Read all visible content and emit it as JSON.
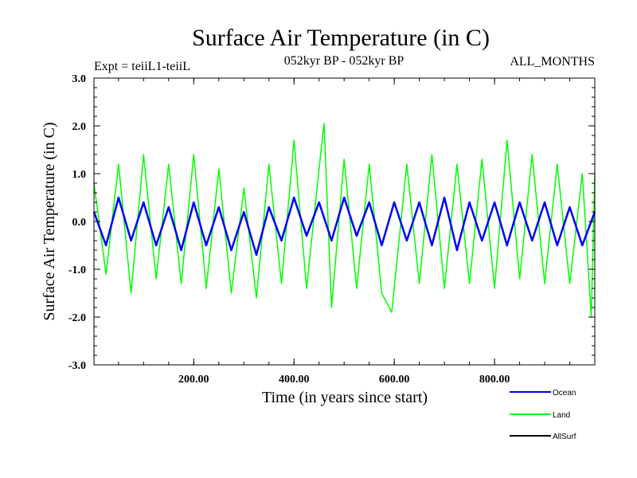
{
  "chart_data": {
    "type": "line",
    "title": "Surface Air Temperature (in C)",
    "subtitle_left": "Expt = teiiL1-teiiL",
    "subtitle_center": "052kyr BP - 052kyr BP",
    "subtitle_right": "ALL_MONTHS",
    "xlabel": "Time (in years since start)",
    "ylabel": "Surface Air Temperature (in C)",
    "xlim": [
      1,
      1000
    ],
    "ylim": [
      -3.0,
      3.0
    ],
    "xticks": [
      200,
      400,
      600,
      800
    ],
    "xtick_labels": [
      "200.00",
      "400.00",
      "600.00",
      "800.00"
    ],
    "yticks": [
      -3,
      -2,
      -1,
      0,
      1,
      2,
      3
    ],
    "ytick_labels": [
      "-3.0",
      "-2.0",
      "-1.0",
      "0.0",
      "1.0",
      "2.0",
      "3.0"
    ],
    "grid": false,
    "legend_position": "bottom-right",
    "series": [
      {
        "name": "Land",
        "color": "#00ff00",
        "x": [
          1,
          25,
          50,
          75,
          100,
          125,
          150,
          175,
          200,
          225,
          250,
          275,
          300,
          325,
          350,
          375,
          400,
          425,
          450,
          460,
          475,
          500,
          525,
          550,
          575,
          595,
          625,
          650,
          675,
          700,
          725,
          750,
          775,
          800,
          825,
          850,
          875,
          900,
          925,
          950,
          975,
          993,
          1000
        ],
        "values": [
          0.8,
          -1.1,
          1.2,
          -1.5,
          1.4,
          -1.2,
          1.2,
          -1.3,
          1.4,
          -1.4,
          1.1,
          -1.5,
          0.7,
          -1.6,
          1.2,
          -1.3,
          1.7,
          -1.4,
          1.1,
          2.05,
          -1.8,
          1.3,
          -1.4,
          1.2,
          -1.5,
          -1.9,
          1.2,
          -1.3,
          1.4,
          -1.4,
          1.2,
          -1.3,
          1.3,
          -1.4,
          1.7,
          -1.2,
          1.4,
          -1.3,
          1.2,
          -1.3,
          1.0,
          -2.0,
          1.0
        ]
      },
      {
        "name": "Ocean",
        "color": "#0000ff",
        "x": [
          1,
          25,
          50,
          75,
          100,
          125,
          150,
          175,
          200,
          225,
          250,
          275,
          300,
          325,
          350,
          375,
          400,
          425,
          450,
          475,
          500,
          525,
          550,
          575,
          600,
          625,
          650,
          675,
          700,
          725,
          750,
          775,
          800,
          825,
          850,
          875,
          900,
          925,
          950,
          975,
          1000
        ],
        "values": [
          0.2,
          -0.5,
          0.5,
          -0.4,
          0.4,
          -0.5,
          0.3,
          -0.6,
          0.4,
          -0.5,
          0.3,
          -0.6,
          0.2,
          -0.7,
          0.3,
          -0.4,
          0.5,
          -0.3,
          0.4,
          -0.4,
          0.5,
          -0.3,
          0.4,
          -0.5,
          0.4,
          -0.4,
          0.4,
          -0.5,
          0.5,
          -0.6,
          0.4,
          -0.4,
          0.4,
          -0.5,
          0.4,
          -0.4,
          0.4,
          -0.5,
          0.3,
          -0.5,
          0.2
        ]
      },
      {
        "name": "AllSurf",
        "color": "#000000",
        "x": [],
        "values": []
      }
    ]
  }
}
